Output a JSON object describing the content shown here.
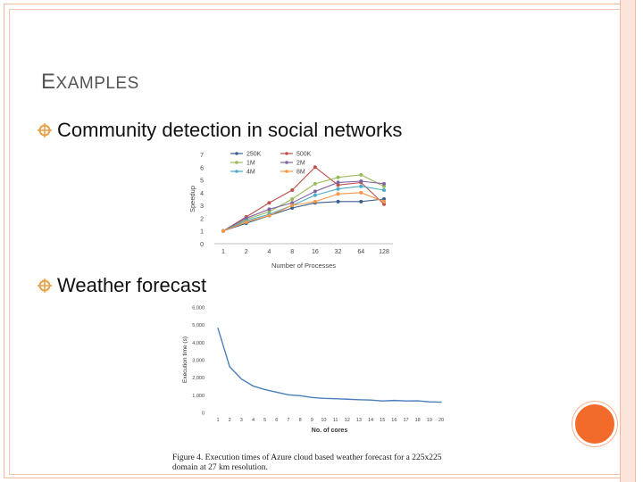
{
  "slide": {
    "title_cap": "E",
    "title_rest": "XAMPLES",
    "bullets": [
      {
        "text": "Community detection in social networks"
      },
      {
        "text": "Weather forecast"
      }
    ],
    "caption": "Figure 4. Execution times of Azure cloud based weather forecast for a 225x225 domain at 27 km resolution.",
    "colors": {
      "accent": "#f26b2a",
      "frame": "#f2b9a0",
      "bullet": "#e8a24a"
    }
  },
  "chart_data": [
    {
      "type": "line",
      "xlabel": "Number of Processes",
      "ylabel": "Speedup",
      "categories": [
        "1",
        "2",
        "4",
        "8",
        "16",
        "32",
        "64",
        "128"
      ],
      "ylim": [
        0,
        7
      ],
      "yticks": [
        "0",
        "1",
        "2",
        "3",
        "4",
        "5",
        "6",
        "7"
      ],
      "legend_position": "top-left",
      "grid": false,
      "series": [
        {
          "name": "250K",
          "color": "#3a5f8a",
          "values": [
            1.0,
            1.6,
            2.2,
            2.8,
            3.2,
            3.3,
            3.3,
            3.5
          ]
        },
        {
          "name": "500K",
          "color": "#c0504d",
          "values": [
            1.0,
            2.1,
            3.2,
            4.2,
            6.0,
            4.6,
            4.8,
            3.1
          ]
        },
        {
          "name": "1M",
          "color": "#9bbb59",
          "values": [
            1.0,
            1.9,
            2.5,
            3.5,
            4.7,
            5.2,
            5.4,
            4.5
          ]
        },
        {
          "name": "2M",
          "color": "#8064a2",
          "values": [
            1.0,
            2.0,
            2.7,
            3.2,
            4.1,
            4.8,
            4.9,
            4.7
          ]
        },
        {
          "name": "4M",
          "color": "#4bacc6",
          "values": [
            1.0,
            1.8,
            2.3,
            3.0,
            3.8,
            4.3,
            4.5,
            4.2
          ]
        },
        {
          "name": "8M",
          "color": "#f79646",
          "values": [
            1.0,
            1.7,
            2.2,
            3.0,
            3.3,
            3.9,
            4.0,
            3.3
          ]
        }
      ]
    },
    {
      "type": "line",
      "xlabel": "No. of cores",
      "ylabel": "Execution time (s)",
      "categories": [
        "1",
        "2",
        "3",
        "4",
        "5",
        "6",
        "7",
        "8",
        "9",
        "10",
        "11",
        "12",
        "13",
        "14",
        "15",
        "16",
        "17",
        "18",
        "19",
        "20"
      ],
      "ylim": [
        0,
        6000
      ],
      "yticks": [
        "0",
        "1,000",
        "2,000",
        "3,000",
        "4,000",
        "5,000",
        "6,000"
      ],
      "grid": false,
      "series": [
        {
          "color": "#4a7ebb",
          "values": [
            4800,
            2600,
            1900,
            1500,
            1300,
            1150,
            1000,
            950,
            850,
            800,
            780,
            750,
            720,
            700,
            650,
            680,
            650,
            660,
            600,
            580
          ]
        }
      ]
    }
  ]
}
